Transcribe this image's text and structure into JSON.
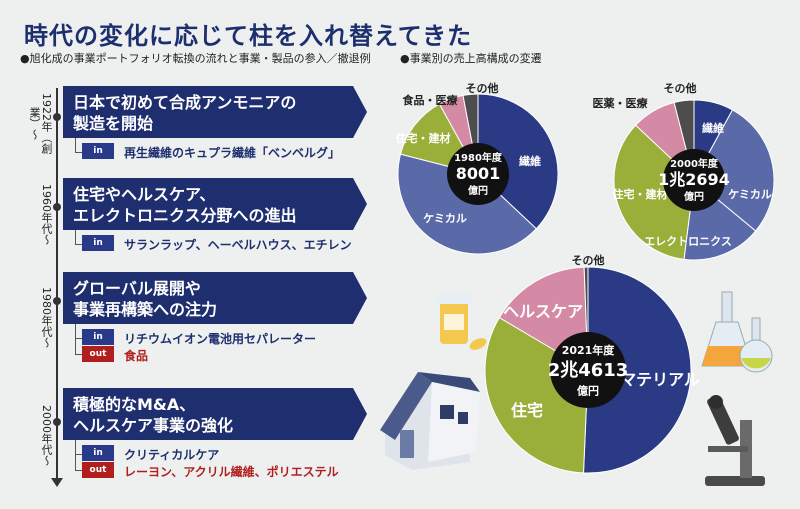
{
  "title": "時代の変化に応じて柱を入れ替えてきた",
  "subtitle_left": "●旭化成の事業ポートフォリオ転換の流れと事業・製品の参入／撤退例",
  "subtitle_right": "●事業別の売上高構成の変遷",
  "timeline": [
    {
      "era": "1922年（創業）〜",
      "heading_line1": "日本で初めて合成アンモニアの",
      "heading_line2": "製造を開始",
      "in": "再生繊維のキュプラ繊維「ベンベルグ」",
      "out": ""
    },
    {
      "era": "1960年代〜",
      "heading_line1": "住宅やヘルスケア、",
      "heading_line2": "エレクトロニクス分野への進出",
      "in": "サランラップ、ヘーベルハウス、エチレン",
      "out": ""
    },
    {
      "era": "1980年代〜",
      "heading_line1": "グローバル展開や",
      "heading_line2": "事業再構築への注力",
      "in": "リチウムイオン電池用セパレーター",
      "out": "食品"
    },
    {
      "era": "2000年代〜",
      "heading_line1": "積極的なM&A、",
      "heading_line2": "ヘルスケア事業の強化",
      "in": "クリティカルケア",
      "out": "レーヨン、アクリル繊維、ポリエステル"
    }
  ],
  "tag_in": "in",
  "tag_out": "out",
  "colors": {
    "navy": "#2b3a85",
    "slate": "#5a6aa8",
    "olive": "#9aae3a",
    "pink": "#d48aa4",
    "gray": "#4d4d4d",
    "title": "#1d2f6e"
  },
  "chart_data": [
    {
      "type": "pie",
      "center_line1": "1980年度",
      "center_line2": "8001",
      "center_line3": "億円",
      "slices": [
        {
          "label": "繊維",
          "value": 37
        },
        {
          "label": "ケミカル",
          "value": 42
        },
        {
          "label": "住宅・建材",
          "value": 13
        },
        {
          "label": "食品・医療",
          "value": 5
        },
        {
          "label": "その他",
          "value": 3
        }
      ]
    },
    {
      "type": "pie",
      "center_line1": "2000年度",
      "center_line2": "1兆2694",
      "center_line3": "億円",
      "slices": [
        {
          "label": "繊維",
          "value": 8
        },
        {
          "label": "ケミカル",
          "value": 28
        },
        {
          "label": "エレクトロニクス",
          "value": 16
        },
        {
          "label": "住宅・建材",
          "value": 35
        },
        {
          "label": "医薬・医療",
          "value": 9
        },
        {
          "label": "その他",
          "value": 4
        }
      ]
    },
    {
      "type": "pie",
      "center_line1": "2021年度",
      "center_line2": "2兆4613",
      "center_line3": "億円",
      "slices": [
        {
          "label": "マテリアル",
          "value": 51
        },
        {
          "label": "住宅",
          "value": 33
        },
        {
          "label": "ヘルスケア",
          "value": 16
        },
        {
          "label": "その他",
          "value": 0.6
        }
      ]
    }
  ]
}
